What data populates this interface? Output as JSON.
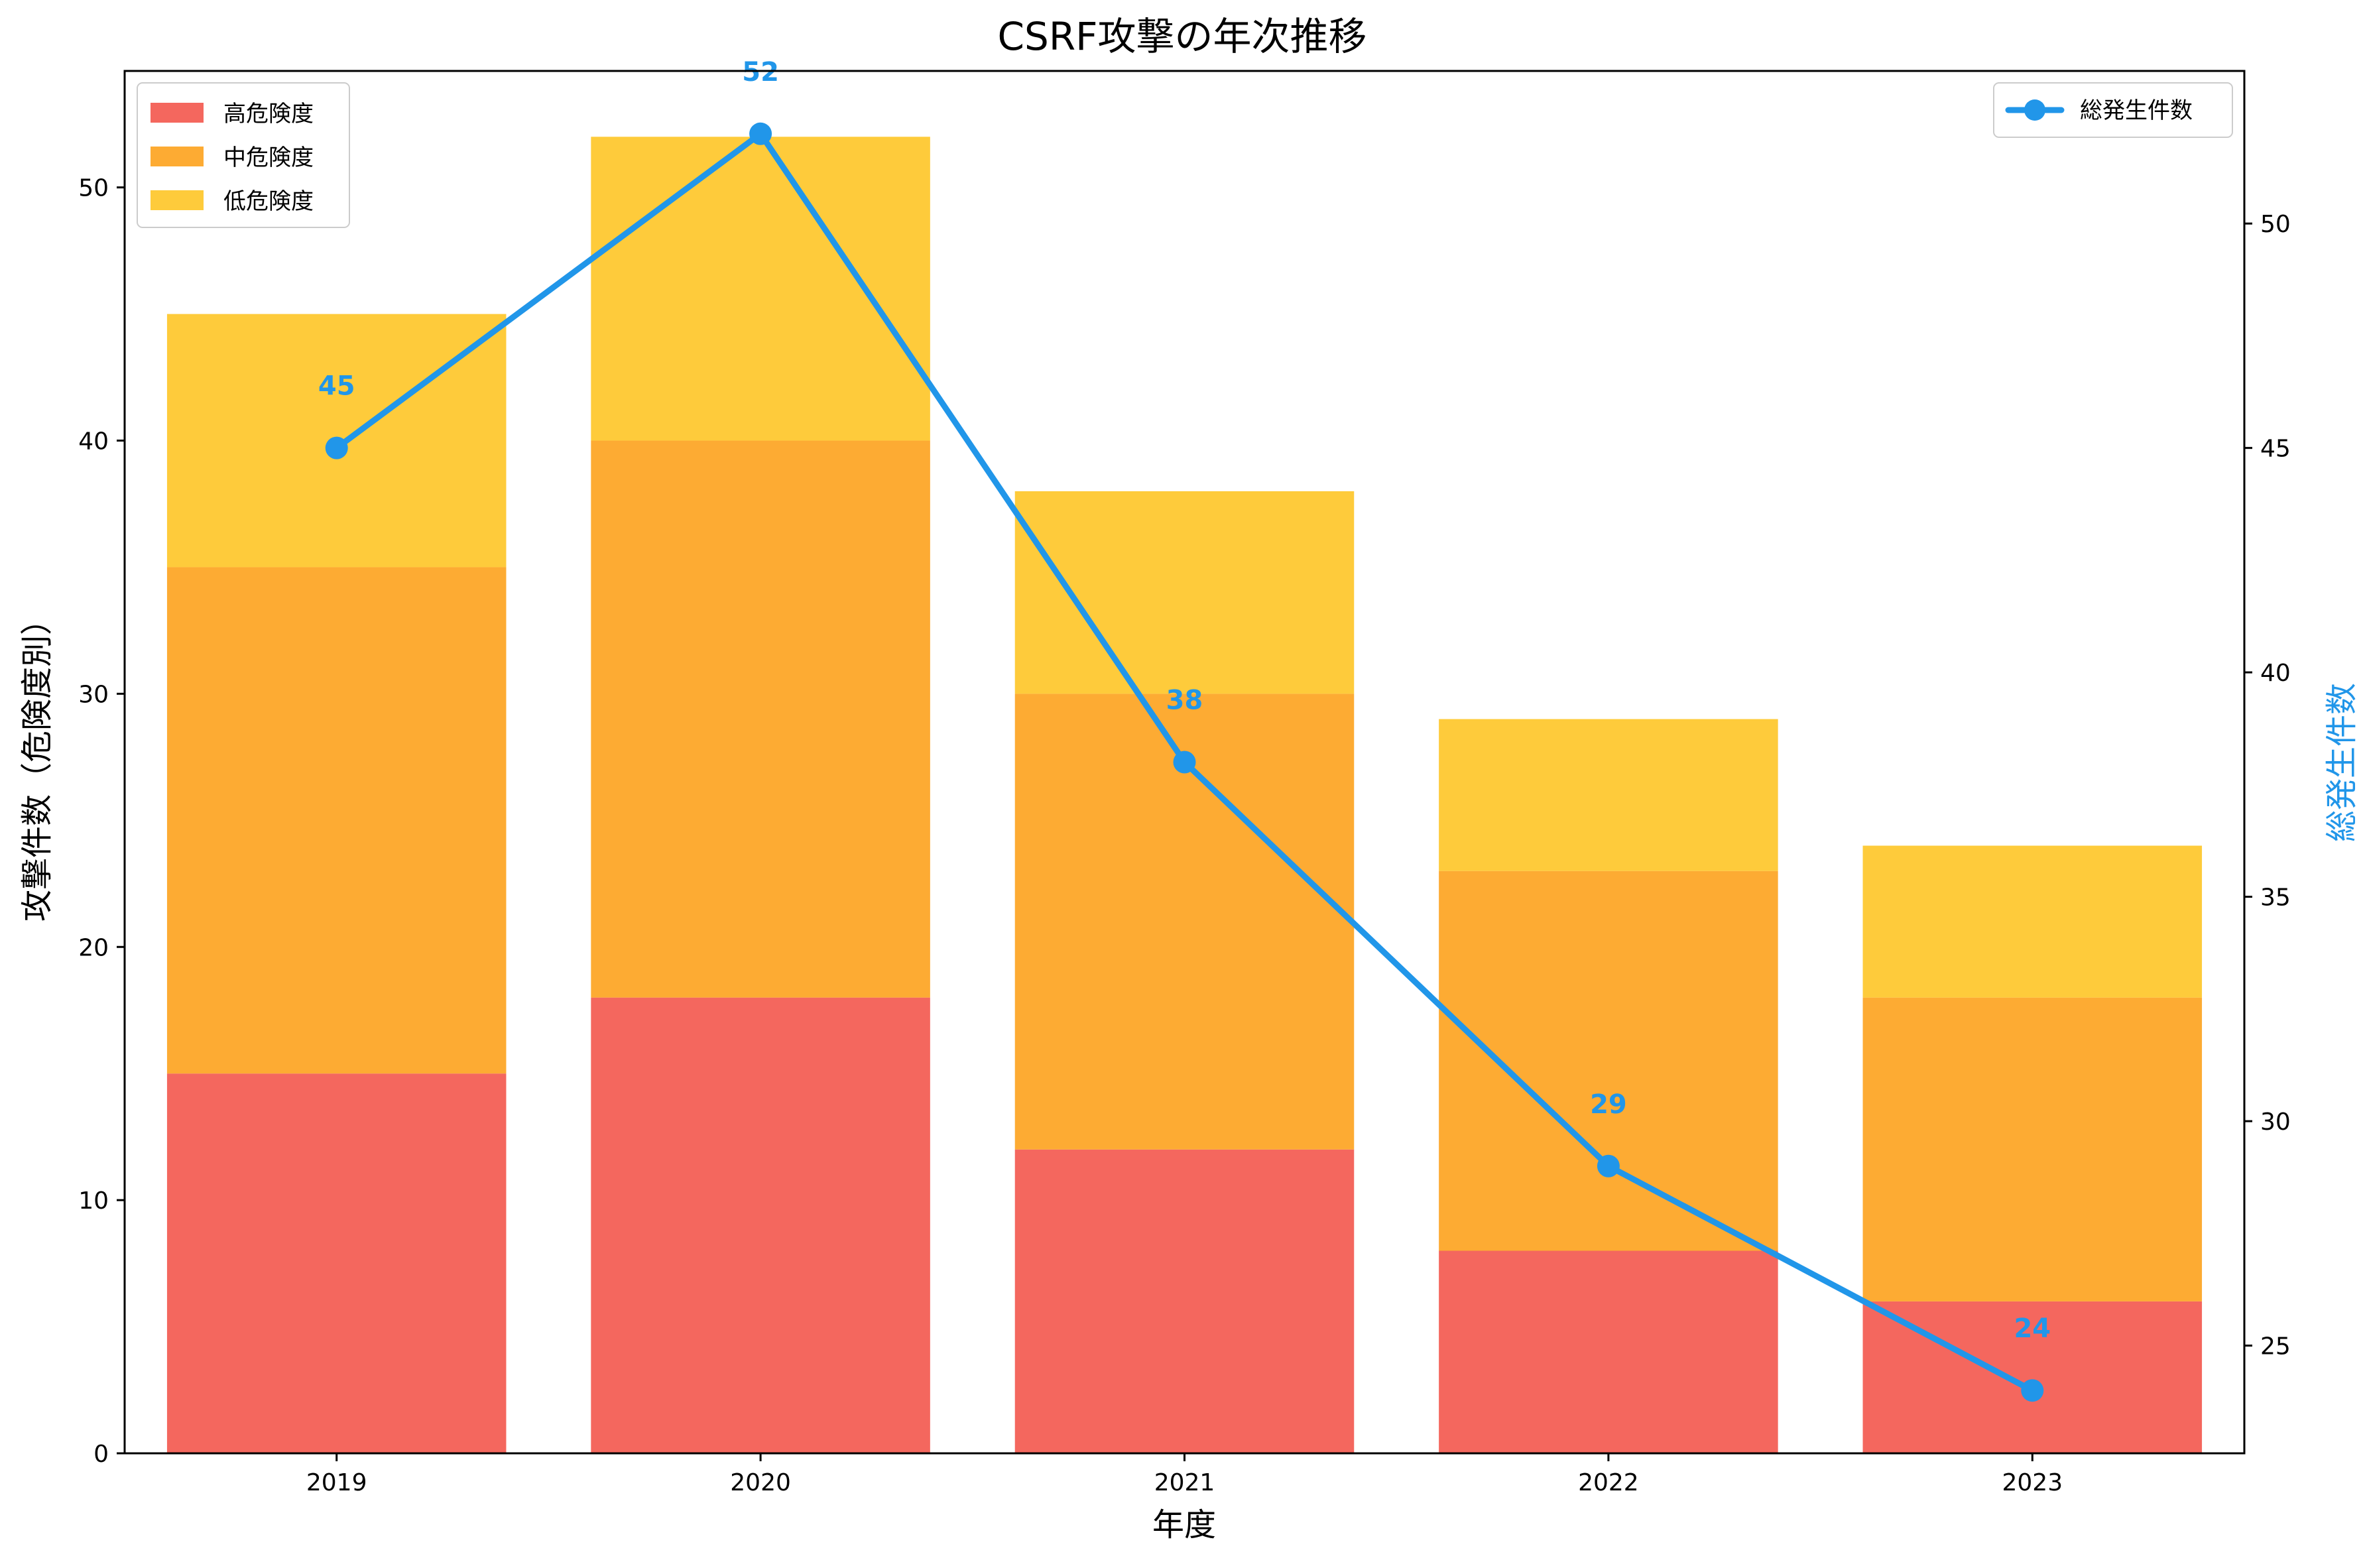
{
  "chart_data": {
    "type": "bar",
    "stacked": true,
    "title": "CSRF攻撃の年次推移",
    "xlabel": "年度",
    "ylabel": "攻撃件数（危険度別）",
    "ylabel_right": "総発生件数",
    "categories": [
      "2019",
      "2020",
      "2021",
      "2022",
      "2023"
    ],
    "ylim": [
      0,
      54.6
    ],
    "yticks": [
      0,
      10,
      20,
      30,
      40,
      50
    ],
    "ylim_right": [
      22.6,
      53.4
    ],
    "yticks_right": [
      25,
      30,
      35,
      40,
      45,
      50
    ],
    "grid": false,
    "series": [
      {
        "name": "高危険度",
        "values": [
          15,
          18,
          12,
          8,
          6
        ],
        "color": "#f4675e"
      },
      {
        "name": "中危険度",
        "values": [
          20,
          22,
          18,
          15,
          12
        ],
        "color": "#fdab33"
      },
      {
        "name": "低危険度",
        "values": [
          10,
          12,
          8,
          6,
          6
        ],
        "color": "#fecb3b"
      }
    ],
    "line_series": {
      "name": "総発生件数",
      "type": "line",
      "axis": "right",
      "values": [
        45,
        52,
        38,
        29,
        24
      ],
      "labels": [
        "45",
        "52",
        "38",
        "29",
        "24"
      ],
      "color": "#2196e9"
    },
    "legend_left_position": "top-left",
    "legend_right_position": "top-right"
  }
}
